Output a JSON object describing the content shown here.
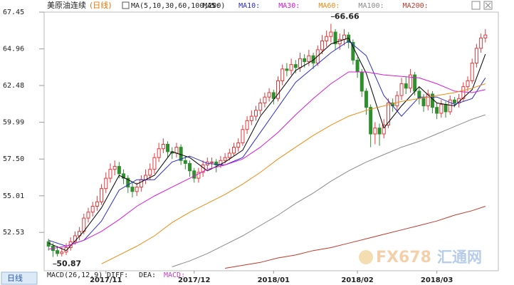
{
  "header": {
    "symbol": "美原油连续",
    "period": "(日线)",
    "ma_params": "MA(5,10,30,60,100,200)"
  },
  "chart_data": {
    "type": "candlestick",
    "open": [
      51.9,
      51.6,
      51.3,
      51.1,
      51.2,
      51.5,
      51.9,
      52.3,
      52.6,
      53.5,
      53.9,
      54.3,
      54.6,
      55.5,
      56.2,
      56.8,
      57.0,
      56.5,
      56.2,
      55.6,
      55.3,
      55.6,
      56.1,
      56.4,
      56.8,
      57.6,
      58.2,
      58.5,
      58.0,
      57.9,
      58.3,
      57.4,
      57.2,
      56.7,
      56.2,
      56.6,
      57.1,
      57.3,
      57.3,
      57.1,
      57.4,
      57.6,
      57.9,
      58.3,
      58.6,
      59.5,
      60.1,
      60.4,
      60.8,
      61.3,
      61.7,
      62.0,
      61.6,
      62.8,
      63.6,
      63.5,
      63.9,
      63.7,
      64.3,
      64.1,
      64.5,
      64.0,
      64.9,
      65.5,
      65.8,
      66.1,
      65.3,
      65.6,
      65.9,
      65.4,
      64.2,
      63.4,
      62.1,
      61.0,
      59.2,
      59.6,
      59.2,
      59.8,
      61.3,
      61.1,
      61.8,
      62.6,
      62.3,
      63.2,
      62.1,
      61.6,
      61.1,
      61.9,
      61.0,
      60.6,
      61.2,
      60.7,
      61.5,
      61.3,
      61.6,
      62.4,
      62.8,
      64.0,
      65.0,
      65.7
    ],
    "high": [
      52.1,
      51.8,
      51.6,
      51.5,
      51.8,
      52.2,
      52.6,
      52.9,
      53.8,
      54.2,
      54.6,
      55.0,
      55.8,
      56.6,
      57.2,
      57.4,
      57.3,
      56.8,
      56.4,
      55.9,
      55.9,
      56.4,
      56.8,
      57.2,
      57.9,
      58.6,
      58.9,
      58.7,
      58.3,
      58.6,
      58.5,
      57.7,
      57.4,
      56.9,
      56.9,
      57.4,
      57.6,
      57.6,
      57.5,
      57.7,
      57.9,
      58.2,
      58.6,
      58.9,
      59.8,
      60.4,
      60.8,
      61.1,
      61.6,
      62.0,
      62.3,
      62.2,
      63.1,
      63.9,
      64.0,
      64.3,
      64.2,
      64.7,
      64.6,
      64.9,
      64.7,
      65.2,
      65.9,
      66.2,
      66.66,
      66.3,
      66.0,
      66.3,
      66.1,
      65.6,
      64.4,
      63.6,
      62.3,
      61.2,
      60.0,
      59.9,
      60.2,
      61.6,
      61.6,
      62.1,
      63.0,
      63.1,
      63.6,
      63.4,
      62.4,
      61.9,
      62.2,
      62.1,
      61.3,
      61.5,
      61.4,
      61.8,
      61.7,
      61.9,
      62.7,
      63.1,
      64.3,
      65.3,
      66.0,
      66.3
    ],
    "low": [
      51.3,
      50.87,
      50.9,
      50.9,
      51.0,
      51.3,
      51.7,
      52.0,
      52.4,
      53.2,
      53.6,
      54.0,
      54.4,
      55.2,
      55.9,
      56.4,
      56.2,
      55.8,
      55.2,
      54.9,
      55.0,
      55.3,
      55.8,
      56.1,
      56.5,
      57.3,
      57.9,
      57.6,
      57.5,
      57.6,
      57.1,
      56.8,
      56.3,
      55.9,
      55.9,
      56.3,
      56.8,
      56.9,
      56.6,
      56.9,
      57.2,
      57.4,
      57.7,
      58.0,
      58.4,
      59.2,
      59.8,
      60.1,
      60.5,
      61.0,
      61.4,
      61.2,
      61.4,
      62.5,
      63.1,
      63.2,
      63.3,
      63.4,
      63.7,
      63.8,
      63.6,
      63.8,
      64.6,
      65.1,
      65.4,
      64.9,
      64.9,
      65.2,
      65.0,
      63.9,
      63.0,
      61.7,
      60.5,
      58.3,
      58.5,
      58.4,
      58.9,
      59.6,
      60.7,
      60.8,
      61.5,
      61.9,
      62.0,
      61.8,
      61.2,
      60.7,
      60.8,
      60.6,
      60.2,
      60.3,
      60.3,
      60.5,
      61.0,
      61.0,
      61.4,
      62.1,
      62.6,
      63.7,
      64.7,
      65.4
    ],
    "close": [
      51.6,
      51.3,
      51.1,
      51.2,
      51.5,
      51.9,
      52.3,
      52.6,
      53.5,
      53.9,
      54.3,
      54.6,
      55.5,
      56.2,
      56.8,
      57.0,
      56.5,
      56.2,
      55.6,
      55.3,
      55.6,
      56.1,
      56.4,
      56.8,
      57.6,
      58.2,
      58.5,
      58.0,
      57.9,
      58.3,
      57.4,
      57.2,
      56.7,
      56.2,
      56.6,
      57.1,
      57.3,
      57.3,
      57.1,
      57.4,
      57.6,
      57.9,
      58.3,
      58.6,
      59.5,
      60.1,
      60.4,
      60.8,
      61.3,
      61.7,
      62.0,
      61.6,
      62.8,
      63.6,
      63.5,
      63.9,
      63.7,
      64.3,
      64.1,
      64.5,
      64.0,
      64.9,
      65.5,
      65.8,
      66.1,
      65.3,
      65.6,
      65.9,
      65.4,
      64.2,
      63.4,
      62.1,
      61.0,
      59.2,
      59.6,
      59.2,
      59.8,
      61.3,
      61.1,
      61.8,
      62.6,
      62.3,
      63.2,
      62.1,
      61.6,
      61.1,
      61.9,
      61.0,
      60.6,
      61.2,
      60.7,
      61.5,
      61.3,
      61.6,
      62.4,
      62.8,
      64.0,
      65.0,
      65.7,
      65.9
    ],
    "up_color": "#e5383b",
    "down_color": "#2f8f2f",
    "annotations": [
      66.66,
      50.87
    ],
    "xlim": [
      -1,
      100
    ],
    "xticks": [
      {
        "value": 13,
        "label": "2017/11"
      },
      {
        "value": 33,
        "label": "2017/12"
      },
      {
        "value": 51,
        "label": "2018/01"
      },
      {
        "value": 70,
        "label": "2018/02"
      },
      {
        "value": 88,
        "label": "2018/03"
      }
    ],
    "ylim": [
      50.03,
      67.79
    ],
    "yticks": [
      67.45,
      64.96,
      62.48,
      59.99,
      {
        "value": 57.5,
        "label": "57.50"
      },
      55.01,
      52.53
    ],
    "series": [
      {
        "name": "MA5:",
        "color": "#000000",
        "x": [
          0,
          4,
          8,
          12,
          16,
          20,
          24,
          28,
          32,
          36,
          40,
          44,
          48,
          52,
          56,
          60,
          64,
          68,
          72,
          76,
          80,
          84,
          88,
          92,
          96,
          99
        ],
        "values": [
          51.8,
          51.3,
          52.6,
          54.2,
          56.4,
          55.8,
          56.4,
          58.0,
          57.6,
          56.7,
          57.3,
          58.1,
          60.4,
          61.9,
          63.5,
          64.2,
          65.3,
          65.7,
          63.3,
          59.6,
          61.1,
          62.4,
          61.3,
          61.1,
          62.2,
          64.6
        ]
      },
      {
        "name": "MA10:",
        "color": "#2b2bd0",
        "x": [
          0,
          4,
          8,
          12,
          16,
          20,
          24,
          28,
          32,
          36,
          40,
          44,
          48,
          52,
          56,
          60,
          64,
          68,
          72,
          76,
          80,
          84,
          88,
          92,
          96,
          99
        ],
        "values": [
          52.0,
          51.6,
          52.0,
          53.3,
          55.4,
          56.1,
          56.1,
          57.3,
          57.7,
          57.2,
          57.1,
          57.6,
          59.3,
          61.0,
          62.7,
          63.7,
          64.7,
          65.5,
          64.5,
          61.8,
          60.4,
          61.7,
          61.7,
          61.2,
          61.6,
          63.0
        ]
      },
      {
        "name": "MA30:",
        "color": "#d81ad8",
        "x": [
          0,
          4,
          8,
          12,
          16,
          20,
          24,
          28,
          32,
          36,
          40,
          44,
          48,
          52,
          56,
          60,
          64,
          68,
          72,
          76,
          80,
          84,
          88,
          92,
          96,
          99
        ],
        "values": [
          51.4,
          51.6,
          52.0,
          52.6,
          53.4,
          54.3,
          55.0,
          55.6,
          56.2,
          56.8,
          57.1,
          57.5,
          58.3,
          59.3,
          60.5,
          61.6,
          62.6,
          63.4,
          63.4,
          63.2,
          63.1,
          63.0,
          62.6,
          62.1,
          62.0,
          62.2
        ]
      },
      {
        "name": "MA60:",
        "color": "#f08a12",
        "x": [
          12,
          16,
          20,
          24,
          28,
          32,
          36,
          40,
          44,
          48,
          52,
          56,
          60,
          64,
          68,
          72,
          76,
          80,
          84,
          88,
          92,
          96,
          99
        ],
        "values": [
          50.4,
          51.0,
          51.6,
          52.3,
          53.2,
          53.9,
          54.5,
          55.1,
          55.8,
          56.6,
          57.5,
          58.3,
          59.1,
          59.8,
          60.4,
          60.8,
          61.1,
          61.4,
          61.6,
          61.8,
          62.0,
          62.3,
          62.6
        ]
      },
      {
        "name": "MA100:",
        "color": "#8a8a8a",
        "x": [
          28,
          32,
          36,
          40,
          44,
          48,
          52,
          56,
          60,
          64,
          68,
          72,
          76,
          80,
          84,
          88,
          92,
          96,
          99
        ],
        "values": [
          50.2,
          50.6,
          51.1,
          51.7,
          52.3,
          53.0,
          53.7,
          54.5,
          55.2,
          56.0,
          56.7,
          57.3,
          57.8,
          58.3,
          58.7,
          59.2,
          59.7,
          60.2,
          60.5
        ]
      },
      {
        "name": "MA200:",
        "color": "#c0392b",
        "x": [
          40,
          44,
          48,
          52,
          56,
          60,
          64,
          68,
          72,
          76,
          80,
          84,
          88,
          92,
          96,
          99
        ],
        "values": [
          50.1,
          50.3,
          50.5,
          50.8,
          51.0,
          51.3,
          51.5,
          51.8,
          52.1,
          52.4,
          52.7,
          53.0,
          53.3,
          53.7,
          54.0,
          54.3
        ]
      }
    ]
  },
  "footer": {
    "period_button": "日线",
    "indicator": "MACD(26,12,9)",
    "diff": "DIFF:",
    "dea": "DEA:",
    "macd": "MACD:"
  },
  "watermark": {
    "code": "FX678",
    "name": "汇通网"
  }
}
